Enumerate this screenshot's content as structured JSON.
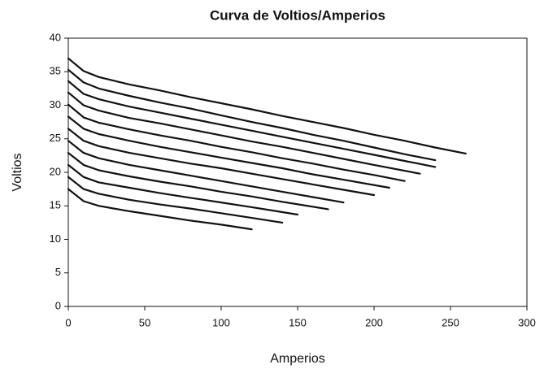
{
  "chart_data": {
    "type": "line",
    "title": "Curva de Voltios/Amperios",
    "xlabel": "Amperios",
    "ylabel": "Voltios",
    "xlim": [
      0,
      300
    ],
    "xticks": [
      0,
      50,
      100,
      150,
      200,
      250,
      300
    ],
    "ylim": [
      0,
      40
    ],
    "yticks": [
      0,
      5,
      10,
      15,
      20,
      25,
      30,
      35,
      40
    ],
    "grid": false,
    "color": "#111111",
    "series": [
      {
        "x": [
          0,
          10,
          20,
          40,
          60,
          80,
          100,
          120
        ],
        "values": [
          17.5,
          15.7,
          15.0,
          14.2,
          13.5,
          12.8,
          12.2,
          11.5
        ]
      },
      {
        "x": [
          0,
          10,
          20,
          40,
          60,
          80,
          100,
          120,
          140
        ],
        "values": [
          19.3,
          17.5,
          16.8,
          15.9,
          15.2,
          14.6,
          13.9,
          13.2,
          12.5
        ]
      },
      {
        "x": [
          0,
          10,
          20,
          40,
          60,
          80,
          100,
          120,
          150
        ],
        "values": [
          21.1,
          19.3,
          18.5,
          17.7,
          16.9,
          16.2,
          15.5,
          14.8,
          13.7
        ]
      },
      {
        "x": [
          0,
          10,
          20,
          40,
          60,
          80,
          100,
          120,
          140,
          170
        ],
        "values": [
          22.9,
          21.1,
          20.3,
          19.4,
          18.6,
          17.9,
          17.1,
          16.4,
          15.6,
          14.5
        ]
      },
      {
        "x": [
          0,
          10,
          20,
          40,
          60,
          80,
          100,
          120,
          140,
          160,
          180
        ],
        "values": [
          24.7,
          22.9,
          22.1,
          21.1,
          20.3,
          19.5,
          18.7,
          17.9,
          17.1,
          16.3,
          15.5
        ]
      },
      {
        "x": [
          0,
          10,
          20,
          40,
          60,
          80,
          100,
          120,
          140,
          160,
          180,
          200
        ],
        "values": [
          26.5,
          24.7,
          23.9,
          22.9,
          22.1,
          21.3,
          20.6,
          19.8,
          19.0,
          18.2,
          17.4,
          16.6
        ]
      },
      {
        "x": [
          0,
          10,
          20,
          40,
          60,
          80,
          100,
          120,
          140,
          160,
          180,
          210
        ],
        "values": [
          28.3,
          26.5,
          25.7,
          24.7,
          23.8,
          23.0,
          22.2,
          21.4,
          20.6,
          19.7,
          18.9,
          17.7
        ]
      },
      {
        "x": [
          0,
          10,
          20,
          40,
          60,
          80,
          100,
          120,
          140,
          160,
          180,
          200,
          220
        ],
        "values": [
          30.1,
          28.2,
          27.4,
          26.4,
          25.5,
          24.7,
          23.8,
          23.0,
          22.1,
          21.3,
          20.4,
          19.6,
          18.7
        ]
      },
      {
        "x": [
          0,
          10,
          20,
          40,
          60,
          80,
          100,
          120,
          140,
          160,
          180,
          200,
          230
        ],
        "values": [
          31.9,
          30.0,
          29.2,
          28.1,
          27.3,
          26.4,
          25.5,
          24.6,
          23.8,
          22.9,
          22.0,
          21.1,
          19.8
        ]
      },
      {
        "x": [
          0,
          10,
          20,
          40,
          60,
          80,
          100,
          120,
          140,
          160,
          180,
          200,
          220,
          240
        ],
        "values": [
          33.6,
          31.7,
          30.9,
          29.8,
          28.9,
          28.0,
          27.1,
          26.2,
          25.3,
          24.4,
          23.5,
          22.6,
          21.7,
          20.8
        ]
      },
      {
        "x": [
          0,
          10,
          20,
          40,
          60,
          80,
          100,
          120,
          140,
          160,
          180,
          200,
          220,
          240
        ],
        "values": [
          35.3,
          33.4,
          32.5,
          31.4,
          30.4,
          29.5,
          28.5,
          27.5,
          26.6,
          25.6,
          24.7,
          23.7,
          22.7,
          21.8
        ]
      },
      {
        "x": [
          0,
          10,
          20,
          40,
          60,
          80,
          100,
          120,
          140,
          160,
          180,
          200,
          220,
          240,
          260
        ],
        "values": [
          37.0,
          35.1,
          34.2,
          33.1,
          32.2,
          31.2,
          30.3,
          29.4,
          28.4,
          27.5,
          26.6,
          25.6,
          24.7,
          23.7,
          22.8
        ]
      }
    ]
  }
}
